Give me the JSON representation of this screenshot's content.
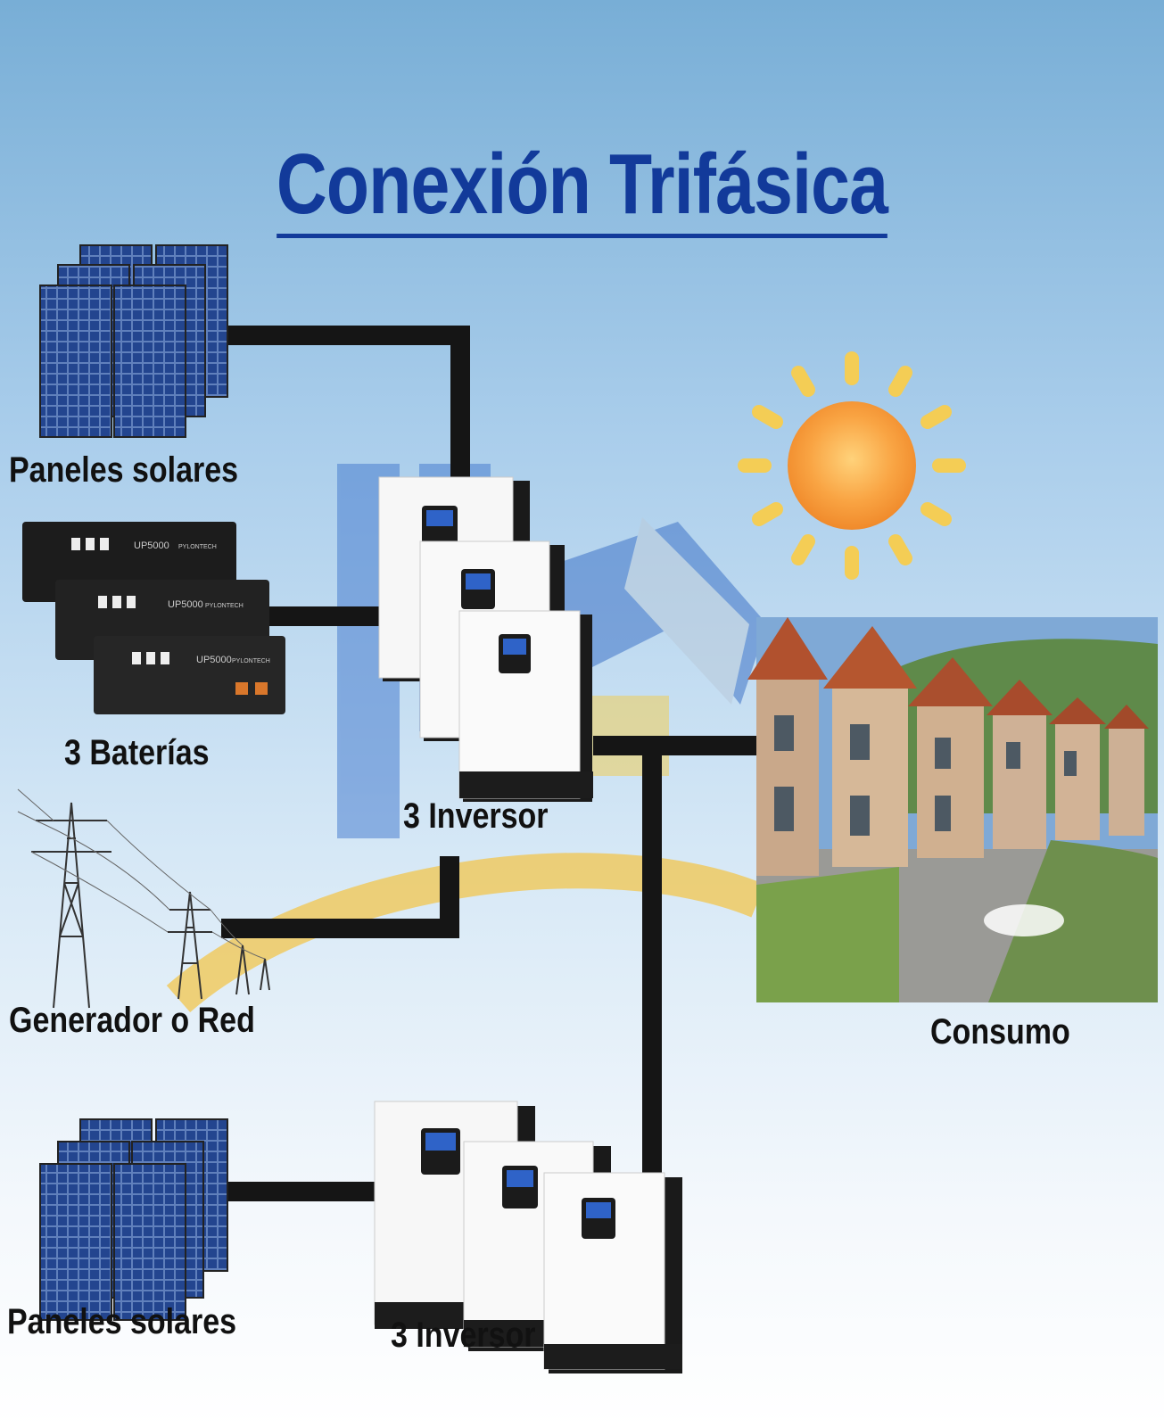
{
  "title": "Conexión Trifásica",
  "labels": {
    "solar_top": "Paneles solares",
    "batteries": "3 Baterías",
    "inverter_top": "3 Inversor",
    "grid": "Generador o Red",
    "consumption": "Consumo",
    "solar_bottom": "Paneles solares",
    "inverter_bottom": "3 Inversor"
  },
  "battery_model": "UP5000",
  "battery_brand": "PYLONTECH",
  "colors": {
    "title": "#123a9a",
    "wire": "#151515",
    "sun": "#f7a540",
    "panel": "#1f3f8f"
  }
}
